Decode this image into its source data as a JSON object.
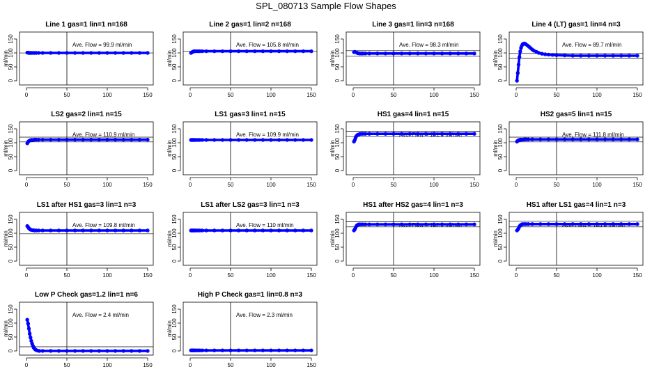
{
  "figure": {
    "title": "SPL_080713  Sample Flow Shapes",
    "ylabel": "ml/min",
    "colors": {
      "points": "#0000ff",
      "axes": "#000000",
      "background": "#ffffff"
    }
  },
  "chart_data": [
    {
      "type": "scatter",
      "title": "Line 1 gas=1 lin=1 n=168",
      "annotation": "Ave. Flow =  99.9  ml/min",
      "ylabel": "ml/min",
      "xlim": [
        0,
        150
      ],
      "ylim": [
        0,
        150
      ],
      "xticks": [
        0,
        50,
        100,
        150
      ],
      "yticks": [
        0,
        50,
        100,
        150
      ],
      "vline": 50,
      "hlines": [
        99.9
      ],
      "x": [
        1,
        2,
        3,
        4,
        5,
        6,
        8,
        10,
        12,
        15,
        20,
        30,
        40,
        50,
        60,
        70,
        80,
        90,
        100,
        110,
        120,
        130,
        140,
        150
      ],
      "y": [
        101,
        101,
        100,
        100,
        100,
        100,
        100,
        100,
        100,
        100,
        100,
        100,
        100,
        100,
        100,
        100,
        100,
        100,
        100,
        100,
        100,
        100,
        100,
        100
      ]
    },
    {
      "type": "scatter",
      "title": "Line 2 gas=1 lin=2 n=168",
      "annotation": "Ave. Flow =  105.8  ml/min",
      "ylabel": "ml/min",
      "xlim": [
        0,
        150
      ],
      "ylim": [
        0,
        150
      ],
      "xticks": [
        0,
        50,
        100,
        150
      ],
      "yticks": [
        0,
        50,
        100,
        150
      ],
      "vline": 50,
      "hlines": [
        105.8
      ],
      "x": [
        1,
        2,
        3,
        4,
        5,
        6,
        8,
        10,
        12,
        15,
        20,
        30,
        40,
        50,
        60,
        70,
        80,
        90,
        100,
        110,
        120,
        130,
        140,
        150
      ],
      "y": [
        100,
        102,
        104,
        105,
        106,
        106,
        106,
        106,
        106,
        106,
        106,
        106,
        106,
        106,
        106,
        106,
        106,
        106,
        106,
        106,
        106,
        106,
        106,
        106
      ]
    },
    {
      "type": "scatter",
      "title": "Line 3 gas=1 lin=3 n=168",
      "annotation": "Ave. Flow =  98.3  ml/min",
      "ylabel": "ml/min",
      "xlim": [
        0,
        150
      ],
      "ylim": [
        0,
        150
      ],
      "xticks": [
        0,
        50,
        100,
        150
      ],
      "yticks": [
        0,
        50,
        100,
        150
      ],
      "vline": 50,
      "hlines": [
        108,
        88
      ],
      "x": [
        1,
        2,
        3,
        4,
        5,
        6,
        8,
        10,
        12,
        15,
        20,
        30,
        40,
        50,
        60,
        70,
        80,
        90,
        100,
        110,
        120,
        130,
        140,
        150
      ],
      "y": [
        103,
        104,
        103,
        102,
        100,
        99,
        98,
        98,
        98,
        98,
        98,
        98,
        98,
        98,
        98,
        98,
        98,
        98,
        98,
        98,
        98,
        98,
        98,
        98
      ]
    },
    {
      "type": "scatter",
      "title": "Line 4 (LT) gas=1 lin=4 n=3",
      "annotation": "Ave. Flow =  89.7  ml/min",
      "ylabel": "ml/min",
      "xlim": [
        0,
        150
      ],
      "ylim": [
        0,
        150
      ],
      "xticks": [
        0,
        50,
        100,
        150
      ],
      "yticks": [
        0,
        50,
        100,
        150
      ],
      "vline": 50,
      "hlines": [
        98,
        81
      ],
      "x": [
        1,
        2,
        3,
        4,
        5,
        6,
        7,
        8,
        9,
        10,
        11,
        12,
        14,
        16,
        18,
        20,
        22,
        25,
        28,
        32,
        36,
        40,
        45,
        50,
        60,
        70,
        80,
        90,
        100,
        110,
        120,
        130,
        140,
        150
      ],
      "y": [
        0,
        28,
        58,
        85,
        105,
        118,
        126,
        131,
        133,
        134,
        133,
        131,
        127,
        122,
        117,
        112,
        108,
        104,
        100,
        97,
        95,
        94,
        93,
        92,
        91,
        90,
        90,
        90,
        90,
        90,
        90,
        90,
        90,
        90
      ]
    },
    {
      "type": "scatter",
      "title": "LS2 gas=2 lin=1 n=15",
      "annotation": "Ave. Flow =  110.9  ml/min",
      "ylabel": "ml/min",
      "xlim": [
        0,
        150
      ],
      "ylim": [
        0,
        150
      ],
      "xticks": [
        0,
        50,
        100,
        150
      ],
      "yticks": [
        0,
        50,
        100,
        150
      ],
      "vline": 50,
      "hlines": [
        120,
        103
      ],
      "x": [
        1,
        2,
        3,
        4,
        5,
        6,
        8,
        10,
        12,
        15,
        20,
        30,
        40,
        50,
        60,
        70,
        80,
        90,
        100,
        110,
        120,
        130,
        140,
        150
      ],
      "y": [
        98,
        103,
        106,
        108,
        109,
        110,
        110,
        111,
        111,
        111,
        111,
        111,
        111,
        111,
        111,
        111,
        111,
        111,
        111,
        111,
        111,
        111,
        111,
        111
      ]
    },
    {
      "type": "scatter",
      "title": "LS1 gas=3 lin=1 n=15",
      "annotation": "Ave. Flow =  109.9  ml/min",
      "ylabel": "ml/min",
      "xlim": [
        0,
        150
      ],
      "ylim": [
        0,
        150
      ],
      "xticks": [
        0,
        50,
        100,
        150
      ],
      "yticks": [
        0,
        50,
        100,
        150
      ],
      "vline": 50,
      "hlines": [],
      "x": [
        1,
        2,
        3,
        4,
        5,
        6,
        8,
        10,
        12,
        15,
        20,
        30,
        40,
        50,
        60,
        70,
        80,
        90,
        100,
        110,
        120,
        130,
        140,
        150
      ],
      "y": [
        110,
        110,
        110,
        110,
        110,
        110,
        110,
        110,
        110,
        110,
        110,
        110,
        110,
        110,
        110,
        110,
        110,
        110,
        110,
        110,
        110,
        110,
        110,
        110
      ]
    },
    {
      "type": "scatter",
      "title": "HS1 gas=4 lin=1 n=15",
      "annotation": "Ave. Flow =  131.9  ml/min",
      "ylabel": "ml/min",
      "xlim": [
        0,
        150
      ],
      "ylim": [
        0,
        150
      ],
      "xticks": [
        0,
        50,
        100,
        150
      ],
      "yticks": [
        0,
        50,
        100,
        150
      ],
      "vline": 50,
      "hlines": [
        141,
        122
      ],
      "x": [
        1,
        2,
        3,
        4,
        5,
        6,
        7,
        8,
        10,
        12,
        15,
        20,
        30,
        40,
        50,
        60,
        70,
        80,
        90,
        100,
        110,
        120,
        130,
        140,
        150
      ],
      "y": [
        104,
        110,
        118,
        124,
        127,
        129,
        130,
        131,
        132,
        132,
        132,
        132,
        132,
        132,
        132,
        132,
        132,
        132,
        132,
        132,
        132,
        132,
        132,
        132,
        132
      ]
    },
    {
      "type": "scatter",
      "title": "HS2 gas=5 lin=1 n=15",
      "annotation": "Ave. Flow =  111.8  ml/min",
      "ylabel": "ml/min",
      "xlim": [
        0,
        150
      ],
      "ylim": [
        0,
        150
      ],
      "xticks": [
        0,
        50,
        100,
        150
      ],
      "yticks": [
        0,
        50,
        100,
        150
      ],
      "vline": 50,
      "hlines": [
        120,
        103
      ],
      "x": [
        1,
        2,
        3,
        4,
        5,
        6,
        8,
        10,
        12,
        15,
        20,
        30,
        40,
        50,
        60,
        70,
        80,
        90,
        100,
        110,
        120,
        130,
        140,
        150
      ],
      "y": [
        104,
        107,
        109,
        110,
        111,
        111,
        111,
        112,
        112,
        112,
        112,
        112,
        112,
        112,
        112,
        112,
        112,
        112,
        112,
        112,
        112,
        112,
        112,
        112
      ]
    },
    {
      "type": "scatter",
      "title": "LS1 after HS1 gas=3 lin=1 n=3",
      "annotation": "Ave. Flow =  109.8  ml/min",
      "ylabel": "ml/min",
      "xlim": [
        0,
        150
      ],
      "ylim": [
        0,
        150
      ],
      "xticks": [
        0,
        50,
        100,
        150
      ],
      "yticks": [
        0,
        50,
        100,
        150
      ],
      "vline": 50,
      "hlines": [
        98
      ],
      "x": [
        1,
        2,
        3,
        4,
        5,
        6,
        8,
        10,
        12,
        15,
        20,
        30,
        40,
        50,
        60,
        70,
        80,
        90,
        100,
        110,
        120,
        130,
        140,
        150
      ],
      "y": [
        126,
        122,
        118,
        115,
        113,
        112,
        111,
        110,
        110,
        110,
        110,
        110,
        110,
        110,
        110,
        110,
        110,
        110,
        110,
        110,
        110,
        110,
        110,
        110
      ]
    },
    {
      "type": "scatter",
      "title": "LS1 after LS2 gas=3 lin=1 n=3",
      "annotation": "Ave. Flow =  110  ml/min",
      "ylabel": "ml/min",
      "xlim": [
        0,
        150
      ],
      "ylim": [
        0,
        150
      ],
      "xticks": [
        0,
        50,
        100,
        150
      ],
      "yticks": [
        0,
        50,
        100,
        150
      ],
      "vline": 50,
      "hlines": [],
      "x": [
        1,
        2,
        3,
        4,
        5,
        6,
        8,
        10,
        12,
        15,
        20,
        30,
        40,
        50,
        60,
        70,
        80,
        90,
        100,
        110,
        120,
        130,
        140,
        150
      ],
      "y": [
        110,
        110,
        110,
        110,
        110,
        110,
        110,
        110,
        110,
        110,
        110,
        110,
        110,
        110,
        110,
        110,
        110,
        110,
        110,
        110,
        110,
        110,
        110,
        110
      ]
    },
    {
      "type": "scatter",
      "title": "HS1 after HS2 gas=4 lin=1 n=3",
      "annotation": "Ave. Flow =  132.1  ml/min",
      "ylabel": "ml/min",
      "xlim": [
        0,
        150
      ],
      "ylim": [
        0,
        150
      ],
      "xticks": [
        0,
        50,
        100,
        150
      ],
      "yticks": [
        0,
        50,
        100,
        150
      ],
      "vline": 50,
      "hlines": [
        141,
        123
      ],
      "x": [
        1,
        2,
        3,
        4,
        5,
        6,
        7,
        8,
        10,
        12,
        15,
        20,
        30,
        40,
        50,
        60,
        70,
        80,
        90,
        100,
        110,
        120,
        130,
        140,
        150
      ],
      "y": [
        110,
        114,
        120,
        126,
        129,
        131,
        132,
        132,
        132,
        132,
        132,
        132,
        132,
        132,
        132,
        132,
        132,
        132,
        132,
        132,
        132,
        132,
        132,
        132,
        132
      ]
    },
    {
      "type": "scatter",
      "title": "HS1 after LS1 gas=4 lin=1 n=3",
      "annotation": "Ave. Flow =  133.3  ml/min",
      "ylabel": "ml/min",
      "xlim": [
        0,
        150
      ],
      "ylim": [
        0,
        150
      ],
      "xticks": [
        0,
        50,
        100,
        150
      ],
      "yticks": [
        0,
        50,
        100,
        150
      ],
      "vline": 50,
      "hlines": [
        143,
        123
      ],
      "x": [
        1,
        2,
        3,
        4,
        5,
        6,
        7,
        8,
        10,
        12,
        15,
        20,
        30,
        40,
        50,
        60,
        70,
        80,
        90,
        100,
        110,
        120,
        130,
        140,
        150
      ],
      "y": [
        110,
        113,
        118,
        124,
        128,
        130,
        132,
        133,
        133,
        133,
        133,
        133,
        133,
        133,
        133,
        133,
        133,
        133,
        133,
        133,
        133,
        133,
        133,
        133,
        133
      ]
    },
    {
      "type": "scatter",
      "title": "Low P Check gas=1.2 lin=1 n=6",
      "annotation": "Ave. Flow =  2.4  ml/min",
      "ylabel": "ml/min",
      "xlim": [
        0,
        150
      ],
      "ylim": [
        0,
        150
      ],
      "xticks": [
        0,
        50,
        100,
        150
      ],
      "yticks": [
        0,
        50,
        100,
        150
      ],
      "vline": 50,
      "hlines": [
        15
      ],
      "x": [
        1,
        2,
        3,
        4,
        5,
        6,
        7,
        8,
        9,
        10,
        11,
        12,
        14,
        16,
        20,
        30,
        40,
        50,
        60,
        70,
        80,
        90,
        100,
        110,
        120,
        130,
        140,
        150
      ],
      "y": [
        112,
        98,
        80,
        62,
        48,
        36,
        26,
        18,
        12,
        8,
        5,
        3,
        1,
        0,
        0,
        0,
        0,
        0,
        0,
        0,
        0,
        0,
        0,
        0,
        0,
        0,
        0,
        0
      ]
    },
    {
      "type": "scatter",
      "title": "High P Check gas=1 lin=0.8 n=3",
      "annotation": "Ave. Flow =  2.3  ml/min",
      "ylabel": "ml/min",
      "xlim": [
        0,
        150
      ],
      "ylim": [
        0,
        150
      ],
      "xticks": [
        0,
        50,
        100,
        150
      ],
      "yticks": [
        0,
        50,
        100,
        150
      ],
      "vline": 50,
      "hlines": [],
      "x": [
        1,
        2,
        3,
        4,
        5,
        6,
        8,
        10,
        12,
        15,
        20,
        30,
        40,
        50,
        60,
        70,
        80,
        90,
        100,
        110,
        120,
        130,
        140,
        150
      ],
      "y": [
        2,
        2,
        2,
        2,
        2,
        2,
        2,
        2,
        2,
        2,
        2,
        2,
        2,
        2,
        2,
        2,
        2,
        2,
        2,
        2,
        2,
        2,
        2,
        2
      ]
    }
  ]
}
